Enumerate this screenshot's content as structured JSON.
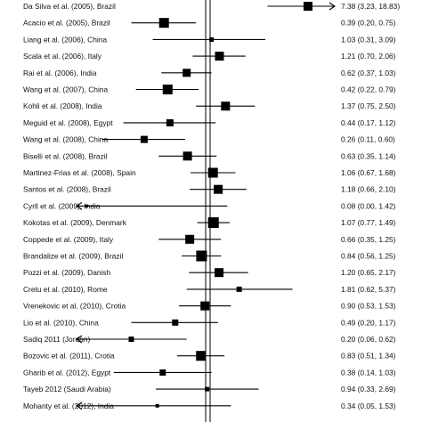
{
  "chart_data": {
    "type": "forest",
    "scale": "log",
    "xlim": [
      0.03,
      25
    ],
    "reference_line": 1,
    "studies": [
      {
        "study": "Da Silva et al. (2005), Brazil",
        "or": 7.38,
        "lo": 3.23,
        "hi": 18.83,
        "text": "7.38 (3.23, 18.83)",
        "weight": 1.0
      },
      {
        "study": "Acacio et al. (2005), Brazil",
        "or": 0.39,
        "lo": 0.2,
        "hi": 0.75,
        "text": "0.39 (0.20, 0.75)",
        "weight": 1.1
      },
      {
        "study": "Liang et al. (2006), China",
        "or": 1.03,
        "lo": 0.31,
        "hi": 3.09,
        "text": "1.03 (0.31, 3.09)",
        "weight": 0.5
      },
      {
        "study": "Scala et al. (2006), Italy",
        "or": 1.21,
        "lo": 0.7,
        "hi": 2.06,
        "text": "1.21 (0.70, 2.06)",
        "weight": 1.0
      },
      {
        "study": "Rai et al. (2006), India",
        "or": 0.62,
        "lo": 0.37,
        "hi": 1.03,
        "text": "0.62 (0.37, 1.03)",
        "weight": 0.9
      },
      {
        "study": "Wang et al. (2007), China",
        "or": 0.42,
        "lo": 0.22,
        "hi": 0.79,
        "text": "0.42 (0.22, 0.79)",
        "weight": 1.1
      },
      {
        "study": "Kohli et al. (2008), India",
        "or": 1.37,
        "lo": 0.75,
        "hi": 2.5,
        "text": "1.37 (0.75, 2.50)",
        "weight": 1.0
      },
      {
        "study": "Meguid et al. (2008), Egypt",
        "or": 0.44,
        "lo": 0.17,
        "hi": 1.12,
        "text": "0.44 (0.17, 1.12)",
        "weight": 0.8
      },
      {
        "study": "Wang et al. (2008), China",
        "or": 0.26,
        "lo": 0.11,
        "hi": 0.6,
        "text": "0.26 (0.11, 0.60)",
        "weight": 0.8
      },
      {
        "study": "Biselli et al. (2008), Brazil",
        "or": 0.63,
        "lo": 0.35,
        "hi": 1.14,
        "text": "0.63 (0.35, 1.14)",
        "weight": 1.0
      },
      {
        "study": "Martinez-Frias et al. (2008), Spain",
        "or": 1.06,
        "lo": 0.67,
        "hi": 1.68,
        "text": "1.06 (0.67, 1.68)",
        "weight": 1.1
      },
      {
        "study": "Santos et al. (2008), Brazil",
        "or": 1.18,
        "lo": 0.66,
        "hi": 2.1,
        "text": "1.18 (0.66, 2.10)",
        "weight": 1.0
      },
      {
        "study": "Cyrll et al. (2009), India",
        "or": 0.08,
        "lo": 0.0,
        "hi": 1.42,
        "text": "0.08 (0.00, 1.42)",
        "weight": 0.35
      },
      {
        "study": "Kokotas et al. (2009), Denmark",
        "or": 1.07,
        "lo": 0.77,
        "hi": 1.49,
        "text": "1.07 (0.77, 1.49)",
        "weight": 1.2
      },
      {
        "study": "Coppede et al. (2009), Italy",
        "or": 0.66,
        "lo": 0.35,
        "hi": 1.25,
        "text": "0.66 (0.35, 1.25)",
        "weight": 1.0
      },
      {
        "study": "Brandalize et al. (2009), Brazil",
        "or": 0.84,
        "lo": 0.56,
        "hi": 1.25,
        "text": "0.84 (0.56, 1.25)",
        "weight": 1.2
      },
      {
        "study": "Pozzi et al. (2009), Danish",
        "or": 1.2,
        "lo": 0.65,
        "hi": 2.17,
        "text": "1.20 (0.65, 2.17)",
        "weight": 1.0
      },
      {
        "study": "Cretu et al. (2010), Rome",
        "or": 1.81,
        "lo": 0.62,
        "hi": 5.37,
        "text": "1.81 (0.62, 5.37)",
        "weight": 0.6
      },
      {
        "study": "Vrenekovic et al. (2010), Crotia",
        "or": 0.9,
        "lo": 0.53,
        "hi": 1.53,
        "text": "0.90 (0.53, 1.53)",
        "weight": 1.0
      },
      {
        "study": "Lio et al. (2010), China",
        "or": 0.49,
        "lo": 0.2,
        "hi": 1.17,
        "text": "0.49 (0.20, 1.17)",
        "weight": 0.7
      },
      {
        "study": "Sadiq 2011 (Jordan)",
        "or": 0.2,
        "lo": 0.06,
        "hi": 0.62,
        "text": "0.20 (0.06, 0.62)",
        "weight": 0.6
      },
      {
        "study": "Bozovic et al. (2011), Crotia",
        "or": 0.83,
        "lo": 0.51,
        "hi": 1.34,
        "text": "0.83 (0.51, 1.34)",
        "weight": 1.1
      },
      {
        "study": "Gharib et al. (2012), Egypt",
        "or": 0.38,
        "lo": 0.14,
        "hi": 1.03,
        "text": "0.38 (0.14, 1.03)",
        "weight": 0.7
      },
      {
        "study": "Tayeb 2012 (Saudi Arabia)",
        "or": 0.94,
        "lo": 0.33,
        "hi": 2.69,
        "text": "0.94 (0.33, 2.69)",
        "weight": 0.5
      },
      {
        "study": "Mohanty et al. (2012), India",
        "or": 0.34,
        "lo": 0.05,
        "hi": 1.53,
        "text": "0.34 (0.05, 1.53)",
        "weight": 0.4
      }
    ]
  }
}
